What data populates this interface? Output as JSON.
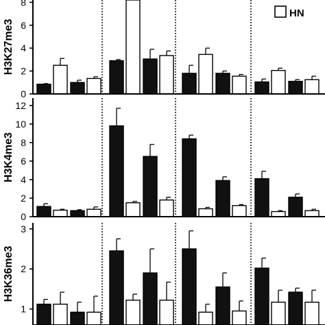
{
  "colors": {
    "filled": "#111111",
    "open": "#ffffff",
    "axis": "#000000"
  },
  "legend": {
    "open_label": "HN",
    "position": "top-right"
  },
  "chart_data": [
    {
      "type": "bar",
      "ylabel": "H3K27me3",
      "ylim": [
        0,
        8.2
      ],
      "yticks": [
        0,
        2,
        4,
        6,
        8
      ],
      "groups": [
        {
          "bars": [
            {
              "fill": "filled",
              "value": 0.85,
              "err": 0.05
            },
            {
              "fill": "open",
              "value": 2.5,
              "err": 0.6
            },
            {
              "fill": "filled",
              "value": 1.0,
              "err": 0.2
            },
            {
              "fill": "open",
              "value": 1.35,
              "err": 0.15
            }
          ]
        },
        {
          "bars": [
            {
              "fill": "filled",
              "value": 2.9,
              "err": 0.1
            },
            {
              "fill": "open",
              "value": 8.2,
              "err": 0.0
            },
            {
              "fill": "filled",
              "value": 3.05,
              "err": 0.85
            },
            {
              "fill": "open",
              "value": 3.35,
              "err": 0.4
            }
          ]
        },
        {
          "bars": [
            {
              "fill": "filled",
              "value": 1.8,
              "err": 0.7
            },
            {
              "fill": "open",
              "value": 3.45,
              "err": 0.55
            },
            {
              "fill": "filled",
              "value": 1.8,
              "err": 0.2
            },
            {
              "fill": "open",
              "value": 1.55,
              "err": 0.15
            }
          ]
        },
        {
          "bars": [
            {
              "fill": "filled",
              "value": 1.05,
              "err": 0.25
            },
            {
              "fill": "open",
              "value": 2.05,
              "err": 0.2
            },
            {
              "fill": "filled",
              "value": 1.1,
              "err": 0.15
            },
            {
              "fill": "open",
              "value": 1.25,
              "err": 0.3
            }
          ]
        }
      ]
    },
    {
      "type": "bar",
      "ylabel": "H3K4me3",
      "ylim": [
        0,
        12.8
      ],
      "yticks": [
        0,
        2,
        4,
        6,
        8,
        10,
        12
      ],
      "groups": [
        {
          "bars": [
            {
              "fill": "filled",
              "value": 1.1,
              "err": 0.3
            },
            {
              "fill": "open",
              "value": 0.7,
              "err": 0.1
            },
            {
              "fill": "filled",
              "value": 0.65,
              "err": 0.1
            },
            {
              "fill": "open",
              "value": 0.8,
              "err": 0.25
            }
          ]
        },
        {
          "bars": [
            {
              "fill": "filled",
              "value": 9.8,
              "err": 1.9
            },
            {
              "fill": "open",
              "value": 1.5,
              "err": 0.15
            },
            {
              "fill": "filled",
              "value": 6.5,
              "err": 1.3
            },
            {
              "fill": "open",
              "value": 1.8,
              "err": 0.3
            }
          ]
        },
        {
          "bars": [
            {
              "fill": "filled",
              "value": 8.4,
              "err": 0.4
            },
            {
              "fill": "open",
              "value": 0.85,
              "err": 0.15
            },
            {
              "fill": "filled",
              "value": 3.9,
              "err": 0.4
            },
            {
              "fill": "open",
              "value": 1.2,
              "err": 0.1
            }
          ]
        },
        {
          "bars": [
            {
              "fill": "filled",
              "value": 4.1,
              "err": 0.8
            },
            {
              "fill": "open",
              "value": 0.55,
              "err": 0.1
            },
            {
              "fill": "filled",
              "value": 2.1,
              "err": 0.35
            },
            {
              "fill": "open",
              "value": 0.65,
              "err": 0.15
            }
          ]
        }
      ]
    },
    {
      "type": "bar",
      "ylabel": "H3K36me3",
      "ylim": [
        0.6,
        3.15
      ],
      "yticks": [
        1,
        2,
        3
      ],
      "groups": [
        {
          "bars": [
            {
              "fill": "filled",
              "value": 1.12,
              "err": 0.12
            },
            {
              "fill": "open",
              "value": 1.12,
              "err": 0.3
            },
            {
              "fill": "filled",
              "value": 0.92,
              "err": 0.25
            },
            {
              "fill": "open",
              "value": 0.92,
              "err": 0.4
            }
          ]
        },
        {
          "bars": [
            {
              "fill": "filled",
              "value": 2.45,
              "err": 0.3
            },
            {
              "fill": "open",
              "value": 1.22,
              "err": 0.15
            },
            {
              "fill": "filled",
              "value": 1.9,
              "err": 0.6
            },
            {
              "fill": "open",
              "value": 1.22,
              "err": 0.45
            }
          ]
        },
        {
          "bars": [
            {
              "fill": "filled",
              "value": 2.5,
              "err": 0.45
            },
            {
              "fill": "open",
              "value": 0.92,
              "err": 0.2
            },
            {
              "fill": "filled",
              "value": 1.55,
              "err": 0.35
            },
            {
              "fill": "open",
              "value": 0.95,
              "err": 0.25
            }
          ]
        },
        {
          "bars": [
            {
              "fill": "filled",
              "value": 2.02,
              "err": 0.25
            },
            {
              "fill": "open",
              "value": 1.17,
              "err": 0.3
            },
            {
              "fill": "filled",
              "value": 1.42,
              "err": 0.1
            },
            {
              "fill": "open",
              "value": 1.17,
              "err": 0.3
            }
          ]
        }
      ]
    }
  ]
}
